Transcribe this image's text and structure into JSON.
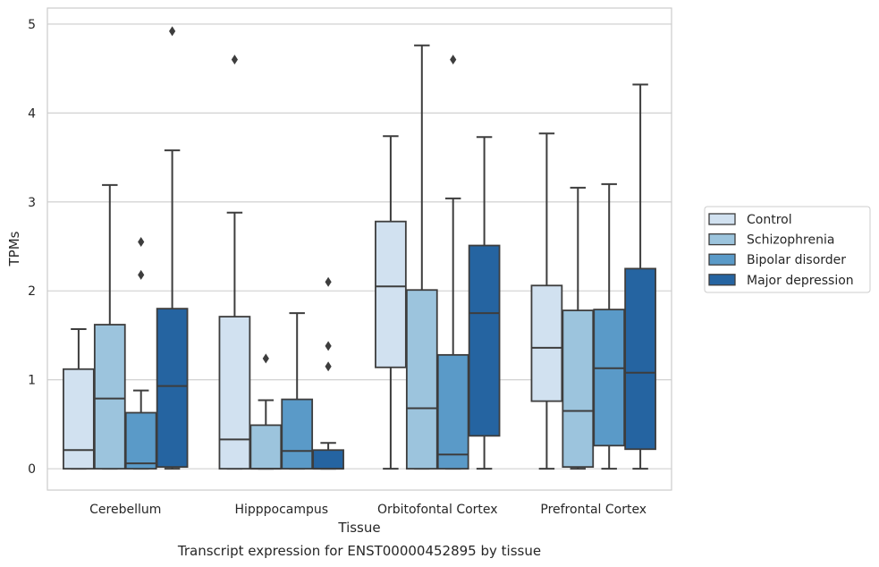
{
  "caption": "Transcript expression for ENST00000452895 by tissue",
  "chart_data": {
    "type": "boxplot",
    "xlabel": "Tissue",
    "ylabel": "TPMs",
    "ylim": [
      -0.24,
      5.18
    ],
    "yticks": [
      0,
      1,
      2,
      3,
      4,
      5
    ],
    "grid": "horizontal",
    "legend_position": "right",
    "categories": [
      "Cerebellum",
      "Hipppocampus",
      "Orbitofontal Cortex",
      "Prefrontal Cortex"
    ],
    "series": [
      {
        "name": "Control",
        "color": "#d1e1f0",
        "boxes": [
          {
            "whislo": 0,
            "q1": 0,
            "med": 0.21,
            "q3": 1.12,
            "whishi": 1.57,
            "fliers": []
          },
          {
            "whislo": 0,
            "q1": 0,
            "med": 0.33,
            "q3": 1.71,
            "whishi": 2.88,
            "fliers": [
              4.6
            ]
          },
          {
            "whislo": 0,
            "q1": 1.14,
            "med": 2.05,
            "q3": 2.78,
            "whishi": 3.74,
            "fliers": []
          },
          {
            "whislo": 0,
            "q1": 0.76,
            "med": 1.36,
            "q3": 2.06,
            "whishi": 3.77,
            "fliers": []
          }
        ]
      },
      {
        "name": "Schizophrenia",
        "color": "#9cc4dd",
        "boxes": [
          {
            "whislo": 0,
            "q1": 0,
            "med": 0.79,
            "q3": 1.62,
            "whishi": 3.19,
            "fliers": []
          },
          {
            "whislo": 0,
            "q1": 0,
            "med": 0,
            "q3": 0.49,
            "whishi": 0.77,
            "fliers": [
              1.24
            ]
          },
          {
            "whislo": 0,
            "q1": 0,
            "med": 0.68,
            "q3": 2.01,
            "whishi": 4.76,
            "fliers": []
          },
          {
            "whislo": 0,
            "q1": 0.02,
            "med": 0.65,
            "q3": 1.78,
            "whishi": 3.16,
            "fliers": []
          }
        ]
      },
      {
        "name": "Bipolar disorder",
        "color": "#5a9ac8",
        "boxes": [
          {
            "whislo": 0,
            "q1": 0,
            "med": 0.06,
            "q3": 0.63,
            "whishi": 0.88,
            "fliers": [
              2.18,
              2.55
            ]
          },
          {
            "whislo": 0,
            "q1": 0,
            "med": 0.2,
            "q3": 0.78,
            "whishi": 1.75,
            "fliers": []
          },
          {
            "whislo": 0,
            "q1": 0,
            "med": 0.16,
            "q3": 1.28,
            "whishi": 3.04,
            "fliers": [
              4.6
            ]
          },
          {
            "whislo": 0,
            "q1": 0.26,
            "med": 1.13,
            "q3": 1.79,
            "whishi": 3.2,
            "fliers": []
          }
        ]
      },
      {
        "name": "Major depression",
        "color": "#2564a1",
        "boxes": [
          {
            "whislo": 0,
            "q1": 0.02,
            "med": 0.93,
            "q3": 1.8,
            "whishi": 3.58,
            "fliers": [
              4.92
            ]
          },
          {
            "whislo": 0,
            "q1": 0,
            "med": 0,
            "q3": 0.21,
            "whishi": 0.29,
            "fliers": [
              1.15,
              1.38,
              2.1
            ]
          },
          {
            "whislo": 0,
            "q1": 0.37,
            "med": 1.75,
            "q3": 2.51,
            "whishi": 3.73,
            "fliers": []
          },
          {
            "whislo": 0,
            "q1": 0.22,
            "med": 1.08,
            "q3": 2.25,
            "whishi": 4.32,
            "fliers": []
          }
        ]
      }
    ]
  }
}
